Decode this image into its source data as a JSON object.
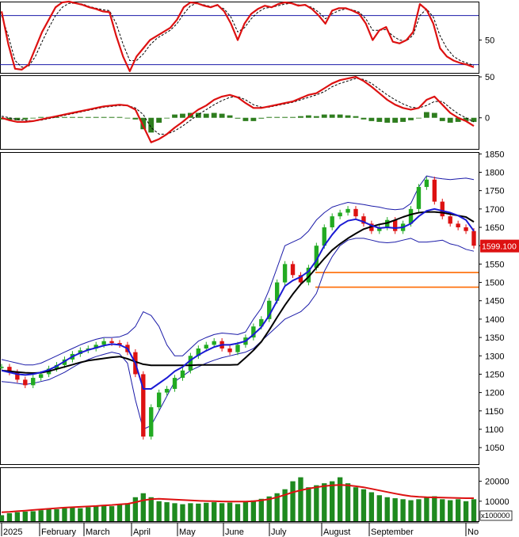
{
  "chart_data": {
    "type": "stock-chart",
    "months": [
      "2025",
      "February",
      "March",
      "April",
      "May",
      "June",
      "July",
      "August",
      "September",
      "No"
    ],
    "panels": [
      {
        "id": "stochastic",
        "yticks": [
          "50"
        ],
        "levels": [
          80,
          20
        ],
        "ylim": [
          10,
          97
        ],
        "fast": [
          85,
          45,
          15,
          14,
          20,
          40,
          60,
          75,
          90,
          96,
          97,
          95,
          93,
          90,
          88,
          85,
          84,
          55,
          30,
          12,
          30,
          40,
          50,
          55,
          60,
          65,
          75,
          90,
          96,
          95,
          92,
          90,
          93,
          85,
          70,
          50,
          70,
          82,
          88,
          92,
          90,
          94,
          96,
          95,
          92,
          93,
          88,
          80,
          70,
          86,
          89,
          89,
          86,
          82,
          70,
          50,
          62,
          66,
          48,
          46,
          50,
          60,
          94,
          87,
          70,
          40,
          30,
          25,
          22,
          20,
          17
        ],
        "slow": [
          80,
          55,
          25,
          17,
          18,
          30,
          48,
          65,
          80,
          90,
          95,
          95,
          94,
          91,
          89,
          87,
          86,
          70,
          45,
          25,
          25,
          33,
          44,
          52,
          57,
          62,
          70,
          82,
          92,
          95,
          93,
          91,
          92,
          88,
          78,
          60,
          65,
          76,
          84,
          89,
          90,
          92,
          94,
          95,
          93,
          92,
          90,
          84,
          76,
          82,
          86,
          88,
          87,
          84,
          76,
          62,
          62,
          63,
          55,
          50,
          49,
          56,
          80,
          88,
          78,
          55,
          40,
          30,
          25,
          22,
          19
        ]
      },
      {
        "id": "macd",
        "yticks": [
          "50",
          "0"
        ],
        "ylim": [
          -38,
          52
        ],
        "macd": [
          0,
          -3,
          -5,
          -5,
          -4,
          -2,
          0,
          2,
          4,
          6,
          8,
          10,
          12,
          14,
          15,
          16,
          15,
          10,
          -10,
          -30,
          -26,
          -20,
          -12,
          -5,
          3,
          10,
          15,
          22,
          26,
          28,
          25,
          18,
          12,
          12,
          14,
          16,
          18,
          20,
          24,
          28,
          30,
          36,
          42,
          46,
          48,
          50,
          45,
          38,
          30,
          22,
          16,
          12,
          10,
          12,
          22,
          26,
          16,
          6,
          0,
          -4,
          -10
        ],
        "signal": [
          2,
          0,
          -2,
          -3,
          -4,
          -3,
          -1,
          1,
          3,
          5,
          7,
          9,
          11,
          13,
          14,
          15,
          15,
          12,
          4,
          -12,
          -20,
          -20,
          -16,
          -10,
          -3,
          4,
          10,
          16,
          21,
          25,
          26,
          22,
          16,
          13,
          13,
          15,
          17,
          19,
          22,
          25,
          28,
          32,
          38,
          42,
          45,
          48,
          47,
          42,
          35,
          28,
          22,
          17,
          13,
          12,
          15,
          20,
          20,
          12,
          5,
          0,
          -5
        ],
        "histogram": [
          -2,
          -3,
          -3,
          -2,
          0,
          1,
          1,
          1,
          1,
          1,
          1,
          1,
          1,
          1,
          1,
          1,
          0,
          -2,
          -14,
          -18,
          -6,
          0,
          4,
          5,
          6,
          6,
          5,
          6,
          5,
          3,
          -1,
          -4,
          -4,
          -1,
          1,
          1,
          1,
          1,
          2,
          3,
          2,
          4,
          4,
          4,
          3,
          2,
          -2,
          -4,
          -5,
          -6,
          -6,
          -5,
          -3,
          0,
          7,
          6,
          -4,
          -6,
          -5,
          -4,
          -5
        ]
      },
      {
        "id": "price",
        "yticks": [
          "1850",
          "1800",
          "1750",
          "1700",
          "1650",
          "1600",
          "1550",
          "1500",
          "1450",
          "1400",
          "1350",
          "1300",
          "1250",
          "1200",
          "1150",
          "1100",
          "1050"
        ],
        "ylim": [
          1005,
          1855
        ],
        "last_price_label": "1599.100",
        "support_levels": [
          1527,
          1487
        ],
        "close": [
          1270,
          1255,
          1235,
          1220,
          1240,
          1250,
          1265,
          1275,
          1290,
          1305,
          1315,
          1320,
          1330,
          1340,
          1335,
          1330,
          1310,
          1250,
          1080,
          1160,
          1200,
          1210,
          1240,
          1260,
          1300,
          1320,
          1330,
          1340,
          1320,
          1310,
          1330,
          1350,
          1380,
          1400,
          1450,
          1500,
          1550,
          1520,
          1500,
          1540,
          1600,
          1650,
          1680,
          1690,
          1700,
          1680,
          1660,
          1640,
          1650,
          1670,
          1640,
          1660,
          1700,
          1760,
          1780,
          1720,
          1680,
          1660,
          1650,
          1640,
          1600
        ],
        "ma_short": [
          1260,
          1255,
          1250,
          1248,
          1250,
          1255,
          1262,
          1272,
          1285,
          1298,
          1308,
          1316,
          1322,
          1328,
          1332,
          1330,
          1320,
          1280,
          1210,
          1210,
          1225,
          1240,
          1258,
          1270,
          1288,
          1302,
          1314,
          1324,
          1330,
          1330,
          1334,
          1340,
          1358,
          1378,
          1410,
          1450,
          1490,
          1505,
          1515,
          1530,
          1560,
          1600,
          1630,
          1655,
          1668,
          1672,
          1665,
          1655,
          1648,
          1650,
          1648,
          1650,
          1660,
          1680,
          1695,
          1700,
          1695,
          1690,
          1682,
          1670,
          1640
        ],
        "ma_long": [
          1260,
          1258,
          1256,
          1254,
          1253,
          1254,
          1258,
          1264,
          1270,
          1276,
          1282,
          1287,
          1290,
          1293,
          1296,
          1298,
          1292,
          1284,
          1277,
          1274,
          1274,
          1274,
          1274,
          1274,
          1274,
          1275,
          1275,
          1275,
          1275,
          1275,
          1276,
          1295,
          1315,
          1338,
          1370,
          1405,
          1438,
          1468,
          1495,
          1515,
          1540,
          1565,
          1588,
          1605,
          1620,
          1633,
          1645,
          1652,
          1658,
          1662,
          1670,
          1678,
          1685,
          1690,
          1692,
          1692,
          1690,
          1686,
          1682,
          1678,
          1665
        ],
        "bb_upper": [
          1290,
          1285,
          1280,
          1275,
          1275,
          1280,
          1290,
          1300,
          1310,
          1320,
          1330,
          1338,
          1345,
          1350,
          1350,
          1352,
          1360,
          1380,
          1420,
          1410,
          1380,
          1330,
          1300,
          1300,
          1320,
          1340,
          1350,
          1358,
          1362,
          1360,
          1358,
          1365,
          1400,
          1430,
          1480,
          1540,
          1600,
          1610,
          1620,
          1640,
          1670,
          1690,
          1705,
          1712,
          1718,
          1715,
          1712,
          1708,
          1705,
          1700,
          1698,
          1700,
          1715,
          1760,
          1790,
          1785,
          1782,
          1780,
          1782,
          1784,
          1780
        ],
        "bb_lower": [
          1230,
          1228,
          1225,
          1222,
          1225,
          1230,
          1235,
          1245,
          1255,
          1268,
          1280,
          1290,
          1298,
          1304,
          1310,
          1305,
          1280,
          1180,
          1100,
          1110,
          1150,
          1190,
          1230,
          1245,
          1260,
          1270,
          1280,
          1288,
          1295,
          1300,
          1305,
          1310,
          1320,
          1340,
          1360,
          1380,
          1400,
          1410,
          1420,
          1440,
          1470,
          1530,
          1570,
          1600,
          1615,
          1620,
          1620,
          1615,
          1610,
          1608,
          1610,
          1615,
          1620,
          1610,
          1610,
          1612,
          1615,
          1605,
          1600,
          1590,
          1585
        ]
      },
      {
        "id": "volume",
        "yticks": [
          "20000",
          "10000"
        ],
        "ylim": [
          0,
          27000
        ],
        "unit_label": "x100000",
        "volume": [
          3000,
          4000,
          4500,
          4800,
          5000,
          5500,
          6000,
          6000,
          6500,
          7000,
          6500,
          7000,
          7500,
          8000,
          7500,
          8500,
          9000,
          12000,
          14000,
          12000,
          10000,
          9500,
          9000,
          8500,
          9000,
          8800,
          9200,
          9500,
          9000,
          9300,
          8600,
          9600,
          10400,
          11200,
          12400,
          14000,
          16000,
          20000,
          22000,
          17000,
          18000,
          19000,
          20000,
          22000,
          19000,
          17000,
          16000,
          14500,
          13000,
          12000,
          11500,
          11000,
          10500,
          11000,
          12000,
          12500,
          11000,
          10500,
          11000,
          10000,
          11000
        ],
        "volume_ma": [
          4500,
          4700,
          5000,
          5300,
          5600,
          5900,
          6200,
          6500,
          6800,
          7000,
          7200,
          7400,
          7600,
          7900,
          8100,
          8400,
          8700,
          9500,
          10500,
          11000,
          11200,
          11000,
          10800,
          10600,
          10400,
          10200,
          10100,
          10000,
          9900,
          9850,
          9800,
          9800,
          10000,
          10400,
          11000,
          12000,
          13200,
          14500,
          15500,
          16300,
          17000,
          17600,
          18000,
          18200,
          18000,
          17500,
          17000,
          16200,
          15400,
          14600,
          13800,
          13100,
          12500,
          12200,
          12000,
          11900,
          11800,
          11700,
          11600,
          11500,
          11500
        ]
      }
    ]
  }
}
